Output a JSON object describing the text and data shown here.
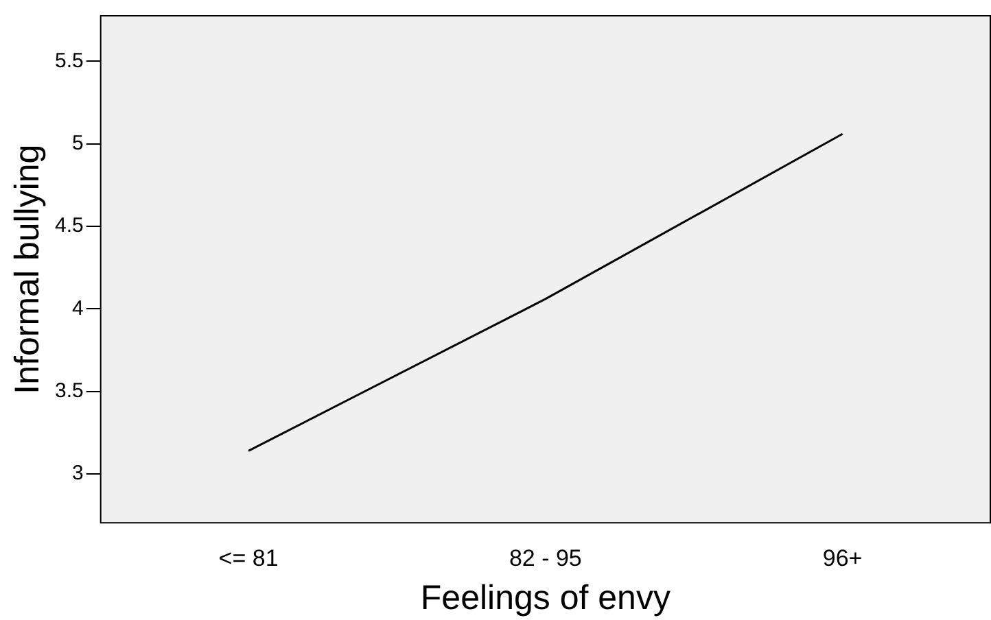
{
  "chart_data": {
    "type": "line",
    "xlabel": "Feelings of envy",
    "ylabel": "Informal bullying",
    "categories": [
      "<= 81",
      "82 - 95",
      "96+"
    ],
    "series": [
      {
        "color": "#000000",
        "values": [
          3.14,
          4.06,
          5.06
        ]
      }
    ],
    "ylim": [
      2.7,
      5.78
    ],
    "yticks": [
      3,
      3.5,
      4,
      4.5,
      5,
      5.5
    ],
    "grid": false,
    "legend": false,
    "marker": "none"
  }
}
